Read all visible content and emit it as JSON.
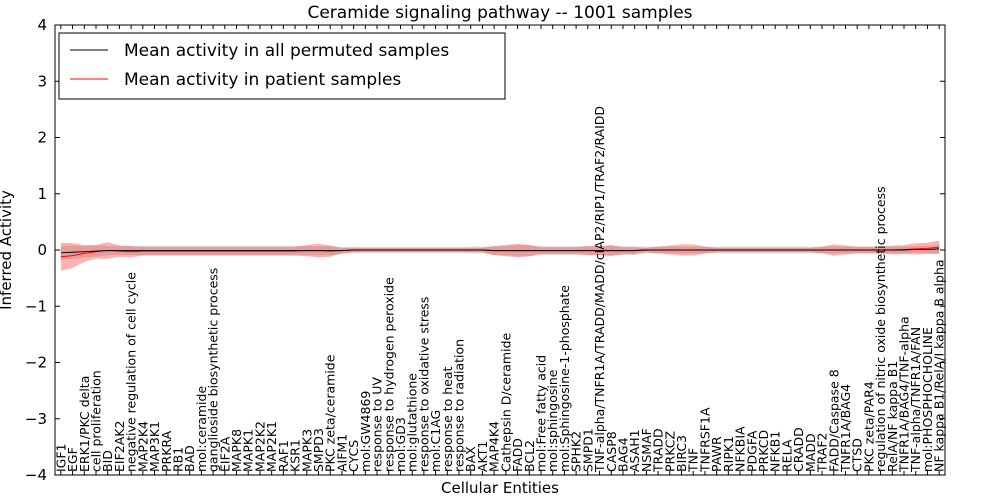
{
  "chart_data": {
    "type": "line",
    "title": "Ceramide signaling pathway -- 1001 samples",
    "xlabel": "Cellular Entities",
    "ylabel": "Inferred Activity",
    "ylim": [
      -4,
      4
    ],
    "yticks": [
      -4,
      -3,
      -2,
      -1,
      0,
      1,
      2,
      3,
      4
    ],
    "legend": {
      "position": "top-left"
    },
    "categories": [
      "IGF1",
      "EGF",
      "ERK1/PKC delta",
      "cell proliferation",
      "BID",
      "EIF2AK2",
      "negative regulation of cell cycle",
      "MAP2K4",
      "MAP3K1",
      "PRKRA",
      "RB1",
      "BAD",
      "mol:ceramide",
      "ganglioside biosynthetic process",
      "EIF2A",
      "MAPK8",
      "MAPK1",
      "MAP2K2",
      "MAP2K1",
      "RAF1",
      "KSR1",
      "MAPK3",
      "SMPD3",
      "PKC zeta/ceramide",
      "AIFM1",
      "CYCS",
      "mol:GW4869",
      "response to UV",
      "response to hydrogen peroxide",
      "mol:GD3",
      "mol:glutathione",
      "response to oxidative stress",
      "mol:C1AG",
      "response to heat",
      "response to radiation",
      "BAX",
      "AKT1",
      "MAP4K4",
      "Cathepsin D/ceramide",
      "FADD",
      "BCL2",
      "mol:Free fatty acid",
      "mol:sphingosine",
      "mol:Sphingosine-1-phosphate",
      "SPHK2",
      "SMPD1",
      "TNF-alpha/TNFR1A/TRADD/MADD/cIAP2/RIP1/TRAF2/RAIDD",
      "CASP8",
      "BAG4",
      "ASAH1",
      "NSMAF",
      "TRADD",
      "PRKCZ",
      "BIRC3",
      "TNF",
      "TNFRSF1A",
      "PAWR",
      "RIPK1",
      "NFKBIA",
      "PDGFA",
      "PRKCD",
      "NFKB1",
      "RELA",
      "CRADD",
      "MADD",
      "TRAF2",
      "FADD/Caspase 8",
      "TNFR1A/BAG4",
      "CTSD",
      "PKC zeta/PAR4",
      "regulation of nitric oxide biosynthetic process",
      "RelA/NF kappa B1",
      "TNFR1A/BAG4/TNF-alpha",
      "TNF-alpha/TNFR1A/FAN",
      "mol:PHOSPHOCHOLINE",
      "NF kappa B1/RelA/I kappa B alpha"
    ],
    "series": [
      {
        "name": "Mean activity in all permuted samples",
        "color": "#000000",
        "values": [
          -0.05,
          -0.04,
          -0.03,
          -0.02,
          -0.01,
          -0.01,
          -0.01,
          -0.01,
          -0.01,
          -0.01,
          -0.01,
          -0.01,
          -0.01,
          -0.01,
          -0.01,
          -0.01,
          -0.01,
          -0.01,
          -0.01,
          -0.01,
          -0.01,
          -0.01,
          -0.01,
          -0.01,
          -0.01,
          0,
          0,
          0,
          0,
          0,
          0,
          0,
          0,
          0,
          0,
          0,
          0,
          -0.01,
          -0.01,
          -0.01,
          -0.01,
          -0.01,
          -0.01,
          -0.01,
          -0.01,
          -0.01,
          -0.01,
          -0.01,
          -0.01,
          -0.01,
          0,
          0,
          0,
          0,
          0,
          0,
          0,
          0,
          0,
          0,
          0,
          0,
          0,
          0,
          0,
          0,
          0,
          0,
          0,
          0,
          0,
          0,
          0,
          0.01,
          0.01,
          0.02
        ],
        "band": [
          0.12,
          0.12,
          0.1,
          0.1,
          0.08,
          0.08,
          0.08,
          0.08,
          0.08,
          0.08,
          0.08,
          0.08,
          0.08,
          0.08,
          0.08,
          0.08,
          0.08,
          0.08,
          0.08,
          0.08,
          0.08,
          0.08,
          0.08,
          0.08,
          0.06,
          0.06,
          0.05,
          0.05,
          0.05,
          0.05,
          0.05,
          0.05,
          0.05,
          0.05,
          0.05,
          0.06,
          0.06,
          0.08,
          0.08,
          0.1,
          0.1,
          0.08,
          0.08,
          0.08,
          0.08,
          0.08,
          0.08,
          0.08,
          0.08,
          0.08,
          0.06,
          0.06,
          0.06,
          0.06,
          0.06,
          0.06,
          0.06,
          0.06,
          0.06,
          0.06,
          0.06,
          0.06,
          0.06,
          0.06,
          0.06,
          0.06,
          0.06,
          0.06,
          0.06,
          0.06,
          0.06,
          0.06,
          0.06,
          0.06,
          0.06,
          0.08
        ]
      },
      {
        "name": "Mean activity in patient samples",
        "color": "#ff0000",
        "values": [
          -0.12,
          -0.1,
          -0.06,
          -0.03,
          -0.01,
          -0.02,
          -0.03,
          -0.02,
          -0.02,
          -0.02,
          -0.02,
          -0.02,
          -0.02,
          -0.02,
          -0.02,
          -0.02,
          -0.02,
          -0.02,
          -0.02,
          -0.02,
          -0.02,
          -0.01,
          -0.01,
          -0.02,
          -0.01,
          0,
          0,
          0,
          0,
          0,
          0,
          0,
          0,
          0,
          0,
          0,
          0,
          -0.01,
          -0.01,
          -0.01,
          -0.01,
          -0.01,
          -0.01,
          -0.01,
          -0.01,
          -0.01,
          -0.01,
          -0.01,
          -0.01,
          -0.01,
          0,
          0,
          0,
          0,
          0,
          0,
          0,
          0,
          0,
          0,
          0,
          0,
          0,
          0,
          0,
          0,
          0,
          0,
          0,
          0,
          0,
          0,
          0.01,
          0.02,
          0.03,
          0.05
        ],
        "band": [
          0.25,
          0.22,
          0.15,
          0.12,
          0.15,
          0.1,
          0.1,
          0.08,
          0.08,
          0.08,
          0.08,
          0.08,
          0.08,
          0.08,
          0.08,
          0.08,
          0.08,
          0.08,
          0.08,
          0.08,
          0.08,
          0.1,
          0.12,
          0.1,
          0.05,
          0.04,
          0.04,
          0.04,
          0.04,
          0.04,
          0.04,
          0.04,
          0.04,
          0.04,
          0.04,
          0.04,
          0.04,
          0.08,
          0.1,
          0.12,
          0.1,
          0.06,
          0.06,
          0.06,
          0.06,
          0.08,
          0.08,
          0.1,
          0.06,
          0.06,
          0.04,
          0.06,
          0.08,
          0.1,
          0.1,
          0.06,
          0.04,
          0.04,
          0.04,
          0.04,
          0.04,
          0.04,
          0.04,
          0.04,
          0.04,
          0.06,
          0.1,
          0.08,
          0.06,
          0.06,
          0.06,
          0.08,
          0.08,
          0.1,
          0.1,
          0.12
        ]
      }
    ]
  }
}
